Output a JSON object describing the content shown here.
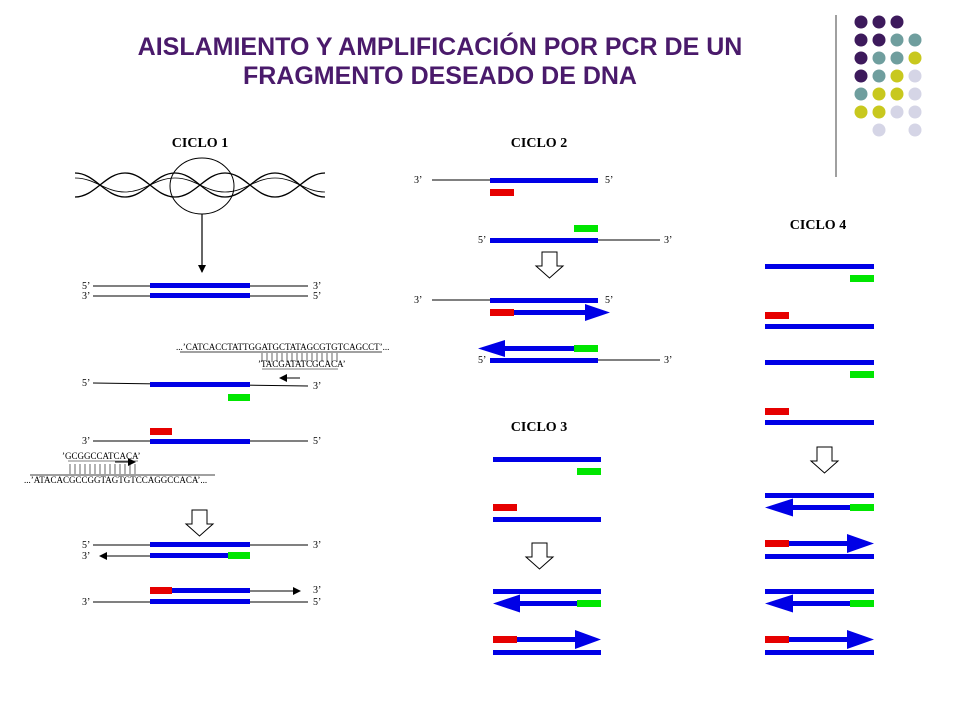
{
  "title": {
    "line1": "AISLAMIENTO Y AMPLIFICACIÓN POR PCR DE UN",
    "line2": "FRAGMENTO DESEADO DE DNA"
  },
  "cycles": {
    "c1": "CICLO  1",
    "c2": "CICLO  2",
    "c3": "CICLO  3",
    "c4": "CICLO  4"
  },
  "ends": {
    "five": "5’",
    "three": "3’"
  },
  "sequences": {
    "top_strand": "...’CATCACCTATTGGATGCTATAGCGTGTCAGCCT’...",
    "primer_top": "’TACGATATCGCACA’",
    "primer_bottom": "’GCGGCCATCACA’",
    "bottom_strand": "...’ATACACGCCGGTAGTGTCCAGGCCACA’..."
  },
  "colors": {
    "title": "#4a1a6b",
    "strand": "#0000e6",
    "primer_forward": "#e60000",
    "primer_reverse": "#00e600",
    "dot_purple": "#3d1a5c",
    "dot_teal": "#6f9e9e",
    "dot_yellow": "#c8c81e",
    "dot_lavender": "#d5d5e6"
  },
  "decor_dots": [
    [
      "purple",
      "purple",
      "purple",
      ""
    ],
    [
      "purple",
      "purple",
      "teal",
      "teal"
    ],
    [
      "purple",
      "teal",
      "teal",
      "yellow"
    ],
    [
      "purple",
      "teal",
      "yellow",
      "lavender"
    ],
    [
      "teal",
      "yellow",
      "yellow",
      "lavender"
    ],
    [
      "yellow",
      "yellow",
      "lavender",
      "lavender"
    ],
    [
      "",
      "lavender",
      "",
      "lavender"
    ]
  ]
}
